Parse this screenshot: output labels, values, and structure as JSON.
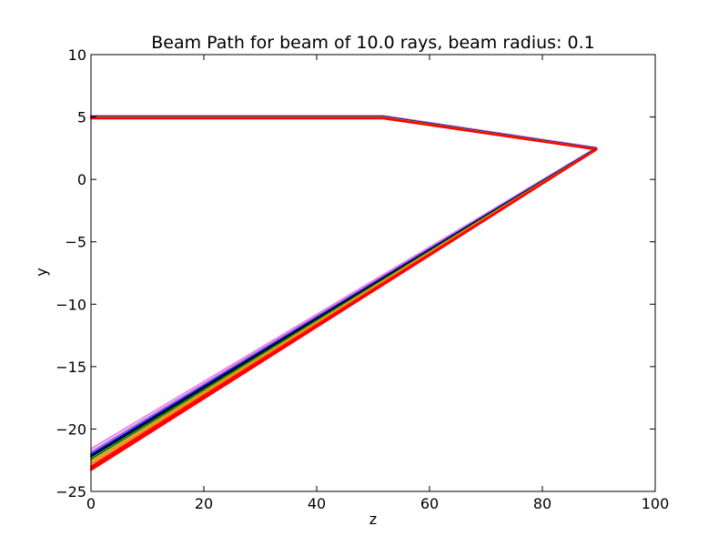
{
  "chart_data": {
    "type": "line",
    "title": "Beam Path for beam of 10.0 rays, beam radius: 0.1",
    "xlabel": "z",
    "ylabel": "y",
    "xlim": [
      0,
      100
    ],
    "ylim": [
      -25,
      10
    ],
    "xticks": [
      0,
      20,
      40,
      60,
      80,
      100
    ],
    "yticks": [
      -25,
      -20,
      -15,
      -10,
      -5,
      0,
      5,
      10
    ],
    "xtick_labels": [
      "0",
      "20",
      "40",
      "60",
      "80",
      "100"
    ],
    "ytick_labels": [
      "−25",
      "−20",
      "−15",
      "−10",
      "−5",
      "0",
      "5",
      "10"
    ],
    "grid": false,
    "series": [
      {
        "color": "#ee82ee",
        "x": [
          0,
          51.8,
          89.6,
          0
        ],
        "y": [
          5.1,
          5.1,
          2.55,
          -21.6
        ]
      },
      {
        "color": "#9467bd",
        "x": [
          0,
          51.8,
          89.6,
          0
        ],
        "y": [
          5.06,
          5.06,
          2.5,
          -21.85
        ]
      },
      {
        "color": "#0000ff",
        "x": [
          0,
          51.8,
          89.6,
          0
        ],
        "y": [
          5.02,
          5.02,
          2.48,
          -22.05
        ]
      },
      {
        "color": "#000000",
        "x": [
          0,
          51.8,
          89.6,
          0
        ],
        "y": [
          5.0,
          5.0,
          2.46,
          -22.2
        ]
      },
      {
        "color": "#008000",
        "x": [
          0,
          51.8,
          89.6,
          0
        ],
        "y": [
          4.98,
          4.98,
          2.44,
          -22.4
        ]
      },
      {
        "color": "#d4a017",
        "x": [
          0,
          51.8,
          89.6,
          0
        ],
        "y": [
          4.96,
          4.96,
          2.43,
          -22.6
        ]
      },
      {
        "color": "#ff7f0e",
        "x": [
          0,
          51.8,
          89.6,
          0
        ],
        "y": [
          4.94,
          4.94,
          2.42,
          -22.8
        ]
      },
      {
        "color": "#ff0000",
        "x": [
          0,
          51.8,
          89.6,
          0
        ],
        "y": [
          4.92,
          4.92,
          2.41,
          -23.0
        ]
      },
      {
        "color": "#ff0000",
        "x": [
          0,
          51.8,
          89.6,
          0
        ],
        "y": [
          4.9,
          4.9,
          2.4,
          -23.15
        ]
      },
      {
        "color": "#ff0000",
        "x": [
          0,
          51.8,
          89.6,
          0
        ],
        "y": [
          4.88,
          4.88,
          2.39,
          -23.3
        ]
      }
    ]
  }
}
